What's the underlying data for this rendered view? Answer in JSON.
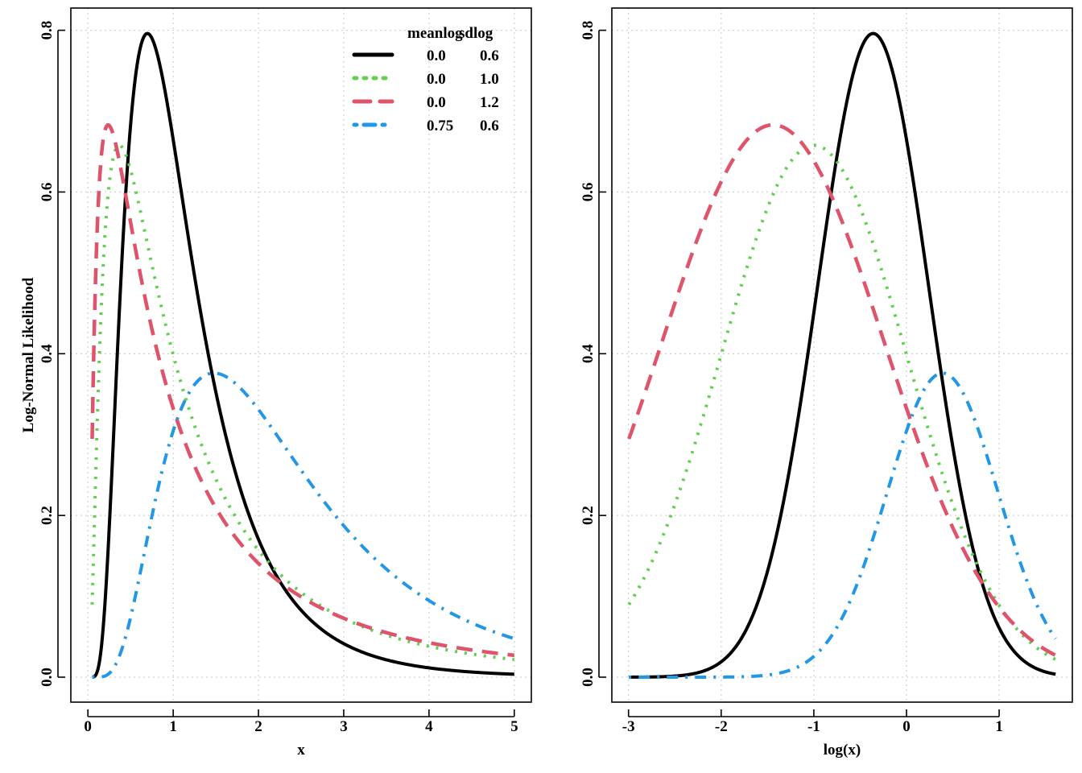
{
  "colors": {
    "black": "#000000",
    "green": "#61D04F",
    "red": "#DF536B",
    "blue": "#2297E6",
    "grid": "#D3D3D3"
  },
  "chart_data": [
    {
      "type": "line",
      "title": "",
      "xlabel": "x",
      "ylabel": "Log-Normal Likelihood",
      "xlim": [
        0,
        5
      ],
      "ylim": [
        0,
        0.8
      ],
      "xticks": [
        "0",
        "1",
        "2",
        "3",
        "4",
        "5"
      ],
      "yticks": [
        "0.0",
        "0.2",
        "0.4",
        "0.6",
        "0.8"
      ],
      "grid": true,
      "x_axis": "linear",
      "x_range": [
        0.05,
        5
      ],
      "curve": "lognormal density of x",
      "legend": {
        "position": "top-right",
        "headers": [
          "meanlog",
          "sdlog"
        ],
        "rows": [
          [
            "0.0",
            "0.6"
          ],
          [
            "0.0",
            "1.0"
          ],
          [
            "0.0",
            "1.2"
          ],
          [
            "0.75",
            "0.6"
          ]
        ]
      },
      "series": [
        {
          "meanlog": 0.0,
          "sdlog": 0.6,
          "color": "black",
          "line": "solid"
        },
        {
          "meanlog": 0.0,
          "sdlog": 1.0,
          "color": "green",
          "line": "dotted"
        },
        {
          "meanlog": 0.0,
          "sdlog": 1.2,
          "color": "red",
          "line": "dashed"
        },
        {
          "meanlog": 0.75,
          "sdlog": 0.6,
          "color": "blue",
          "line": "dot-dash"
        }
      ]
    },
    {
      "type": "line",
      "title": "",
      "xlabel": "log(x)",
      "ylabel": "",
      "xlim": [
        -3,
        1.61
      ],
      "ylim": [
        0,
        0.8
      ],
      "xticks": [
        "-3",
        "-2",
        "-1",
        "0",
        "1"
      ],
      "yticks": [
        "0.0",
        "0.2",
        "0.4",
        "0.6",
        "0.8"
      ],
      "grid": true,
      "x_axis": "log(x)",
      "x_range": [
        0.05,
        5
      ],
      "curve": "lognormal density of x, plotted against log(x)",
      "series": [
        {
          "meanlog": 0.0,
          "sdlog": 0.6,
          "color": "black",
          "line": "solid"
        },
        {
          "meanlog": 0.0,
          "sdlog": 1.0,
          "color": "green",
          "line": "dotted"
        },
        {
          "meanlog": 0.0,
          "sdlog": 1.2,
          "color": "red",
          "line": "dashed"
        },
        {
          "meanlog": 0.75,
          "sdlog": 0.6,
          "color": "blue",
          "line": "dot-dash"
        }
      ]
    }
  ]
}
